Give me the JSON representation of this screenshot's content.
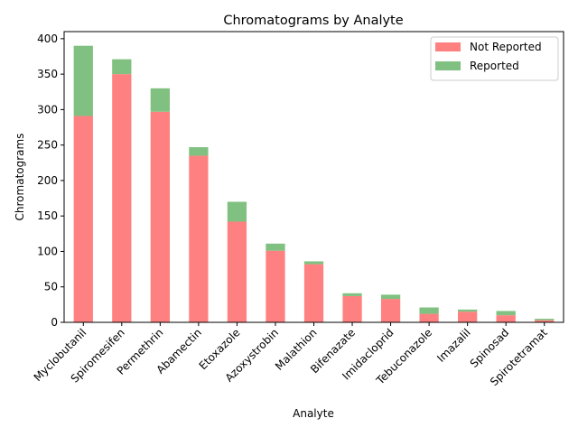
{
  "chart_data": {
    "type": "bar",
    "stacked": true,
    "title": "Chromatograms by Analyte",
    "xlabel": "Analyte",
    "ylabel": "Chromatograms",
    "categories": [
      "Myclobutanil",
      "Spiromesifen",
      "Permethrin",
      "Abamectin",
      "Etoxazole",
      "Azoxystrobin",
      "Malathion",
      "Bifenazate",
      "Imidacloprid",
      "Tebuconazole",
      "Imazalil",
      "Spinosad",
      "Spirotetramat"
    ],
    "series": [
      {
        "name": "Not Reported",
        "color": "#ff8080",
        "values": [
          291,
          350,
          297,
          235,
          142,
          101,
          82,
          37,
          33,
          12,
          15,
          10,
          3
        ]
      },
      {
        "name": "Reported",
        "color": "#80c080",
        "values": [
          99,
          21,
          33,
          12,
          28,
          10,
          4,
          4,
          6,
          9,
          3,
          6,
          2
        ]
      }
    ],
    "ylim": [
      0,
      410
    ],
    "yticks": [
      0,
      50,
      100,
      150,
      200,
      250,
      300,
      350,
      400
    ],
    "legend_position": "top-right",
    "grid": false
  }
}
